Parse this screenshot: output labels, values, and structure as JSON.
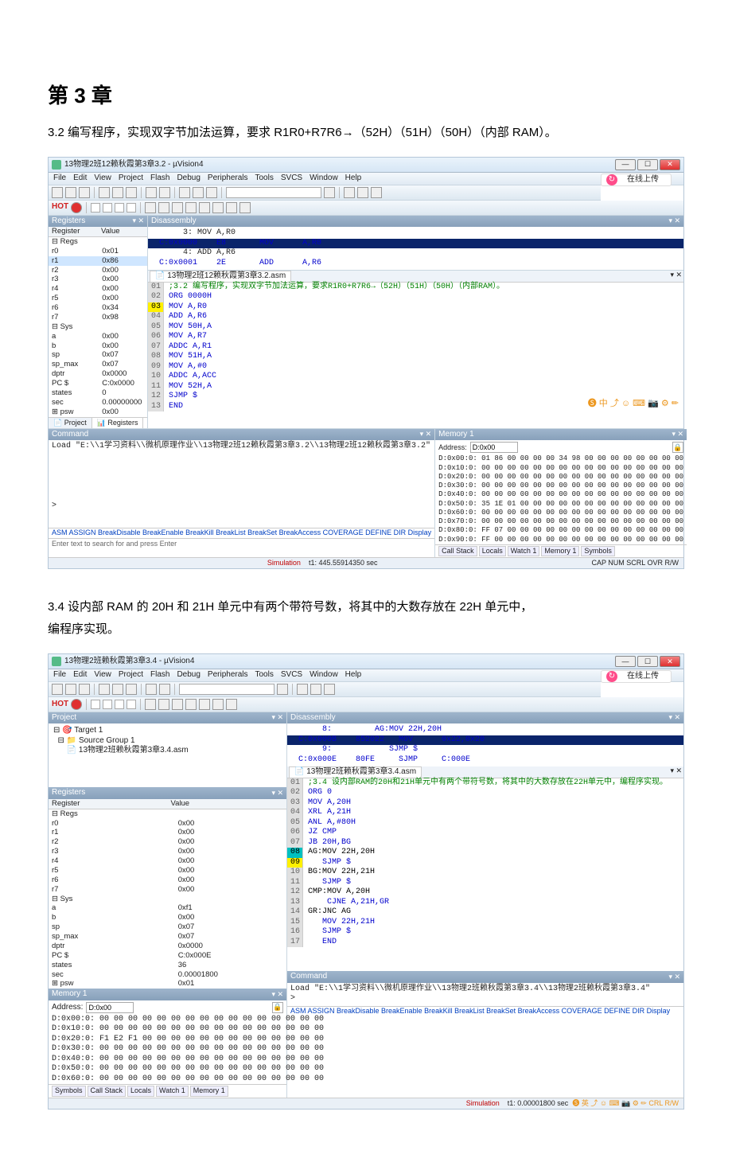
{
  "doc": {
    "chapter": "第 3 章",
    "sec32": "3.2  编写程序，实现双字节加法运算，要求 R1R0+R7R6→（52H）（51H）（50H）（内部 RAM）。",
    "sec34a": "3.4    设内部 RAM 的 20H 和 21H 单元中有两个带符号数，将其中的大数存放在 22H 单元中，",
    "sec34b": "编程序实现。"
  },
  "ide1": {
    "title": "13物理2班12赖秋霞第3章3.2 - µVision4",
    "menus": [
      "File",
      "Edit",
      "View",
      "Project",
      "Flash",
      "Debug",
      "Peripherals",
      "Tools",
      "SVCS",
      "Window",
      "Help"
    ],
    "upload": "在线上传",
    "hot": "HOT",
    "panel_registers": "Registers",
    "reg_headers": [
      "Register",
      "Value"
    ],
    "regs": [
      {
        "k": "⊟ Regs",
        "v": ""
      },
      {
        "k": "  r0",
        "v": "0x01"
      },
      {
        "k": "  r1",
        "v": "0x86",
        "sel": true,
        "vhex": "0x86"
      },
      {
        "k": "  r2",
        "v": "0x00"
      },
      {
        "k": "  r3",
        "v": "0x00"
      },
      {
        "k": "  r4",
        "v": "0x00"
      },
      {
        "k": "  r5",
        "v": "0x00"
      },
      {
        "k": "  r6",
        "v": "0x34"
      },
      {
        "k": "  r7",
        "v": "0x98"
      },
      {
        "k": "⊟ Sys",
        "v": ""
      },
      {
        "k": "  a",
        "v": "0x00"
      },
      {
        "k": "  b",
        "v": "0x00"
      },
      {
        "k": "  sp",
        "v": "0x07"
      },
      {
        "k": "  sp_max",
        "v": "0x07"
      },
      {
        "k": "  dptr",
        "v": "0x0000"
      },
      {
        "k": "  PC $",
        "v": "C:0x0000"
      },
      {
        "k": "  states",
        "v": "0"
      },
      {
        "k": "  sec",
        "v": "0.00000000"
      },
      {
        "k": "⊞ psw",
        "v": "0x00"
      }
    ],
    "reg_tabs": [
      "📄 Project",
      "📊 Registers"
    ],
    "dis_title": "Disassembly",
    "dis_lines": [
      {
        "g": "y",
        "t": "     3: MOV A,R0",
        "cls": "op"
      },
      {
        "g": "y",
        "t": "C:0x0000    E8       MOV      A,R0",
        "addr": true,
        "hl": true
      },
      {
        "g": "c",
        "t": "     4: ADD A,R6",
        "cls": "op"
      },
      {
        "g": "c",
        "t": "C:0x0001    2E       ADD      A,R6",
        "addr": true
      }
    ],
    "asm_tab": "13物理2班12赖秋霞第3章3.2.asm",
    "asm_lines": [
      {
        "n": "01",
        "t": ";3.2 编写程序，实现双字节加法运算，要求R1R0+R7R6→（52H）（51H）（50H）（内部RAM）。",
        "cm": true
      },
      {
        "n": "02",
        "t": "ORG 0000H",
        "num": true
      },
      {
        "n": "03",
        "t": "MOV A,R0",
        "arrow": "y"
      },
      {
        "n": "04",
        "t": "ADD A,R6"
      },
      {
        "n": "05",
        "t": "MOV 50H,A",
        "num": true
      },
      {
        "n": "06",
        "t": "MOV A,R7"
      },
      {
        "n": "07",
        "t": "ADDC A,R1"
      },
      {
        "n": "08",
        "t": "MOV 51H,A",
        "num": true
      },
      {
        "n": "09",
        "t": "MOV A,#0"
      },
      {
        "n": "10",
        "t": "ADDC A,ACC"
      },
      {
        "n": "11",
        "t": "MOV 52H,A",
        "num": true
      },
      {
        "n": "12",
        "t": "SJMP $"
      },
      {
        "n": "13",
        "t": "END"
      }
    ],
    "ime": "🅢 中 ⤴ ☺ ⌨ 📷 ⚙ ✏",
    "cmd_title": "Command",
    "cmd_line": "Load \"E:\\\\1学习资料\\\\微机原理作业\\\\13物理2班12赖秋霞第3章3.2\\\\13物理2班12赖秋霞第3章3.2\"",
    "cmd_prompt": ">",
    "cmd_hints": "ASM ASSIGN BreakDisable BreakEnable BreakKill BreakList BreakSet BreakAccess COVERAGE DEFINE DIR Display",
    "cmd_search": "Enter text to search for and press Enter",
    "mem_title": "Memory 1",
    "mem_addr_lbl": "Address:",
    "mem_addr_val": "D:0x00",
    "mem_dump": [
      "D:0x00:0: 01 86 00 00 00 00 34 98 00 00 00 00 00 00 00 00",
      "D:0x10:0: 00 00 00 00 00 00 00 00 00 00 00 00 00 00 00 00",
      "D:0x20:0: 00 00 00 00 00 00 00 00 00 00 00 00 00 00 00 00",
      "D:0x30:0: 00 00 00 00 00 00 00 00 00 00 00 00 00 00 00 00",
      "D:0x40:0: 00 00 00 00 00 00 00 00 00 00 00 00 00 00 00 00",
      "D:0x50:0: 35 1E 01 00 00 00 00 00 00 00 00 00 00 00 00 00",
      "D:0x60:0: 00 00 00 00 00 00 00 00 00 00 00 00 00 00 00 00",
      "D:0x70:0: 00 00 00 00 00 00 00 00 00 00 00 00 00 00 00 00",
      "D:0x80:0: FF 07 00 00 00 00 00 00 00 00 00 00 00 00 00 00",
      "D:0x90:0: FF 00 00 00 00 00 00 00 00 00 00 00 00 00 00 00"
    ],
    "mem_tabs": [
      "Call Stack",
      "Locals",
      "Watch 1",
      "Memory 1",
      "Symbols"
    ],
    "status_sim": "Simulation",
    "status_t": "t1: 445.55914350 sec",
    "status_caps": "CAP  NUM  SCRL  OVR  R/W"
  },
  "ide2": {
    "title": "13物理2班赖秋霞第3章3.4 - µVision4",
    "menus": [
      "File",
      "Edit",
      "View",
      "Project",
      "Flash",
      "Debug",
      "Peripherals",
      "Tools",
      "SVCS",
      "Window",
      "Help"
    ],
    "upload": "在线上传",
    "proj_title": "Project",
    "proj_tree": [
      "⊟ 🎯 Target 1",
      "  ⊟ 📁 Source Group 1",
      "      📄 13物理2班赖秋霞第3章3.4.asm"
    ],
    "reg_headers": [
      "Register",
      "Value"
    ],
    "regs": [
      {
        "k": "⊟ Regs",
        "v": ""
      },
      {
        "k": "  r0",
        "v": "0x00"
      },
      {
        "k": "  r1",
        "v": "0x00"
      },
      {
        "k": "  r2",
        "v": "0x00"
      },
      {
        "k": "  r3",
        "v": "0x00"
      },
      {
        "k": "  r4",
        "v": "0x00"
      },
      {
        "k": "  r5",
        "v": "0x00"
      },
      {
        "k": "  r6",
        "v": "0x00"
      },
      {
        "k": "  r7",
        "v": "0x00"
      },
      {
        "k": "⊟ Sys",
        "v": ""
      },
      {
        "k": "  a",
        "v": "0xf1"
      },
      {
        "k": "  b",
        "v": "0x00"
      },
      {
        "k": "  sp",
        "v": "0x07"
      },
      {
        "k": "  sp_max",
        "v": "0x07"
      },
      {
        "k": "  dptr",
        "v": "0x0000"
      },
      {
        "k": "  PC $",
        "v": "C:0x000E"
      },
      {
        "k": "  states",
        "v": "36"
      },
      {
        "k": "  sec",
        "v": "0.00001800"
      },
      {
        "k": "⊞ psw",
        "v": "0x01"
      }
    ],
    "panel_registers": "Registers",
    "mem_title": "Memory 1",
    "mem_addr_lbl": "Address:",
    "mem_addr_val": "D:0x00",
    "mem_dump": [
      "D:0x00:0: 00 00 00 00 00 00 00 00 00 00 00 00 00 00 00 00",
      "D:0x10:0: 00 00 00 00 00 00 00 00 00 00 00 00 00 00 00 00",
      "D:0x20:0: F1 E2 F1 00 00 00 00 00 00 00 00 00 00 00 00 00",
      "D:0x30:0: 00 00 00 00 00 00 00 00 00 00 00 00 00 00 00 00",
      "D:0x40:0: 00 00 00 00 00 00 00 00 00 00 00 00 00 00 00 00",
      "D:0x50:0: 00 00 00 00 00 00 00 00 00 00 00 00 00 00 00 00",
      "D:0x60:0: 00 00 00 00 00 00 00 00 00 00 00 00 00 00 00 00"
    ],
    "mem_tabs": [
      "Symbols",
      "Call Stack",
      "Locals",
      "Watch 1",
      "Memory 1"
    ],
    "dis_title": "Disassembly",
    "dis_lines": [
      {
        "t": "     8:         AG:MOV 22H,20H",
        "kw": true
      },
      {
        "t": "C:0x000B    852022   MOV      0x22,0x20",
        "hl": true,
        "addr": true,
        "gut": "y"
      },
      {
        "t": "     9:            SJMP $",
        "kw": true
      },
      {
        "t": "C:0x000E    80FE     SJMP     C:000E",
        "addr": true,
        "gut": "c"
      }
    ],
    "asm_tab": "13物理2班赖秋霞第3章3.4.asm",
    "asm_lines": [
      {
        "n": "01",
        "t": ";3.4 设内部RAM的20H和21H单元中有两个带符号数，将其中的大数存放在22H单元中，编程序实现。",
        "cm": true
      },
      {
        "n": "02",
        "t": "ORG 0"
      },
      {
        "n": "03",
        "t": "MOV A,20H",
        "num": true
      },
      {
        "n": "04",
        "t": "XRL A,21H",
        "num": true
      },
      {
        "n": "05",
        "t": "ANL A,#80H",
        "num": true
      },
      {
        "n": "06",
        "t": "JZ CMP"
      },
      {
        "n": "07",
        "t": "JB 20H,BG",
        "num": true
      },
      {
        "n": "08",
        "t": "AG:MOV 22H,20H",
        "lbl": true,
        "arrow": "c"
      },
      {
        "n": "09",
        "t": "   SJMP $",
        "arrow": "y"
      },
      {
        "n": "10",
        "t": "BG:MOV 22H,21H",
        "lbl": true
      },
      {
        "n": "11",
        "t": "   SJMP $"
      },
      {
        "n": "12",
        "t": "CMP:MOV A,20H",
        "lbl": true
      },
      {
        "n": "13",
        "t": "    CJNE A,21H,GR",
        "num": true
      },
      {
        "n": "14",
        "t": "GR:JNC AG",
        "lbl": true
      },
      {
        "n": "15",
        "t": "   MOV 22H,21H",
        "num": true
      },
      {
        "n": "16",
        "t": "   SJMP $"
      },
      {
        "n": "17",
        "t": "   END"
      }
    ],
    "cmd_title": "Command",
    "cmd_line": "Load \"E:\\\\1学习资料\\\\微机原理作业\\\\13物理2班赖秋霞第3章3.4\\\\13物理2班赖秋霞第3章3.4\"",
    "cmd_prompt": ">",
    "cmd_hints": "ASM ASSIGN BreakDisable BreakEnable BreakKill BreakList BreakSet BreakAccess COVERAGE DEFINE DIR Display",
    "status_sim": "Simulation",
    "status_t": "t1: 0.00001800 sec",
    "ime": "🅢 英 ⤴ ☺ ⌨ 📷 ⚙ ✏ CRL R/W"
  }
}
